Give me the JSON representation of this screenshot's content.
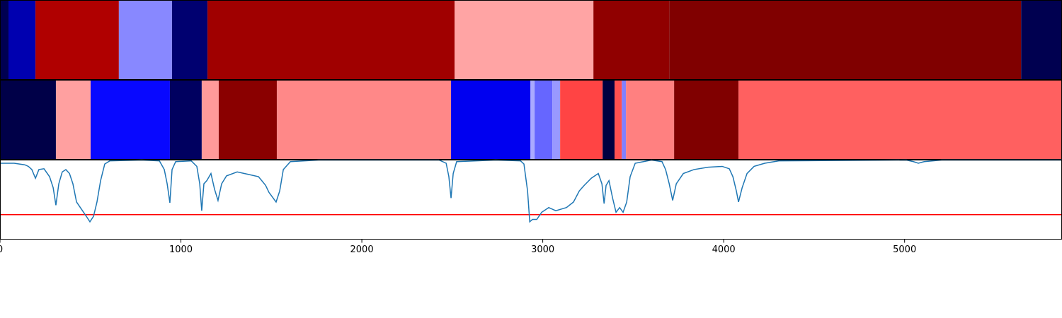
{
  "chart_data": [
    {
      "type": "segments",
      "edges": [
        0,
        47,
        196,
        657,
        951,
        1147,
        2513,
        3280,
        3699,
        5644,
        5870
      ],
      "colors": [
        "#000050",
        "#0000b0",
        "#b00000",
        "#8888ff",
        "#000070",
        "#a00000",
        "#ffa4a4",
        "#900000",
        "#800000",
        "#000050"
      ],
      "xlim": [
        0,
        5870
      ]
    },
    {
      "type": "segments",
      "edges": [
        0,
        309,
        501,
        939,
        1115,
        1209,
        1530,
        2493,
        2932,
        2955,
        3053,
        3096,
        3331,
        3397,
        3437,
        3460,
        3726,
        4082,
        5870
      ],
      "colors": [
        "#000048",
        "#ffa0a0",
        "#0808ff",
        "#000060",
        "#ff9a9a",
        "#8a0000",
        "#ff8888",
        "#0000f0",
        "#aaaaff",
        "#6666ff",
        "#9999ff",
        "#ff4444",
        "#000040",
        "#ff5050",
        "#8080ff",
        "#ff8080",
        "#800000",
        "#ff6060"
      ],
      "xlim": [
        0,
        5870
      ]
    },
    {
      "type": "line",
      "x": [
        0,
        78,
        137,
        157,
        176,
        196,
        215,
        243,
        274,
        294,
        309,
        325,
        344,
        364,
        384,
        403,
        423,
        450,
        477,
        497,
        517,
        536,
        556,
        579,
        607,
        783,
        881,
        908,
        924,
        939,
        951,
        971,
        1057,
        1088,
        1104,
        1115,
        1127,
        1143,
        1166,
        1186,
        1205,
        1225,
        1252,
        1311,
        1370,
        1429,
        1468,
        1487,
        1526,
        1546,
        1566,
        1605,
        1761,
        2427,
        2466,
        2481,
        2493,
        2505,
        2524,
        2740,
        2877,
        2896,
        2916,
        2928,
        2943,
        2967,
        2994,
        3033,
        3072,
        3131,
        3170,
        3202,
        3229,
        3268,
        3307,
        3327,
        3339,
        3350,
        3366,
        3386,
        3405,
        3425,
        3444,
        3464,
        3483,
        3511,
        3601,
        3659,
        3679,
        3699,
        3718,
        3738,
        3777,
        3836,
        3914,
        3992,
        4031,
        4051,
        4070,
        4082,
        4102,
        4129,
        4168,
        4227,
        4305,
        5010,
        5049,
        5076,
        5108,
        5205,
        5870
      ],
      "values": [
        0.96,
        0.96,
        0.94,
        0.92,
        0.88,
        0.77,
        0.88,
        0.89,
        0.79,
        0.65,
        0.43,
        0.7,
        0.85,
        0.88,
        0.83,
        0.7,
        0.47,
        0.38,
        0.29,
        0.22,
        0.29,
        0.47,
        0.74,
        0.95,
        0.99,
        1.0,
        0.99,
        0.88,
        0.7,
        0.46,
        0.88,
        0.98,
        0.99,
        0.92,
        0.7,
        0.36,
        0.7,
        0.74,
        0.83,
        0.63,
        0.49,
        0.7,
        0.8,
        0.85,
        0.82,
        0.79,
        0.68,
        0.59,
        0.47,
        0.61,
        0.88,
        0.98,
        1.0,
        1.0,
        0.96,
        0.79,
        0.52,
        0.83,
        0.98,
        1.0,
        0.99,
        0.95,
        0.61,
        0.22,
        0.25,
        0.25,
        0.34,
        0.4,
        0.36,
        0.4,
        0.47,
        0.61,
        0.68,
        0.77,
        0.83,
        0.7,
        0.45,
        0.68,
        0.74,
        0.52,
        0.34,
        0.4,
        0.34,
        0.47,
        0.79,
        0.96,
        1.0,
        0.98,
        0.88,
        0.7,
        0.49,
        0.7,
        0.83,
        0.88,
        0.91,
        0.92,
        0.89,
        0.79,
        0.61,
        0.47,
        0.65,
        0.83,
        0.92,
        0.96,
        0.99,
        1.0,
        0.98,
        0.96,
        0.98,
        1.0,
        1.0
      ],
      "color": "#1f77b4",
      "threshold": 0.31,
      "threshold_color": "#ff0000",
      "xlim": [
        0,
        5870
      ],
      "ylim": [
        0,
        1
      ],
      "xticks": [
        0,
        1000,
        2000,
        3000,
        4000,
        5000
      ]
    }
  ]
}
